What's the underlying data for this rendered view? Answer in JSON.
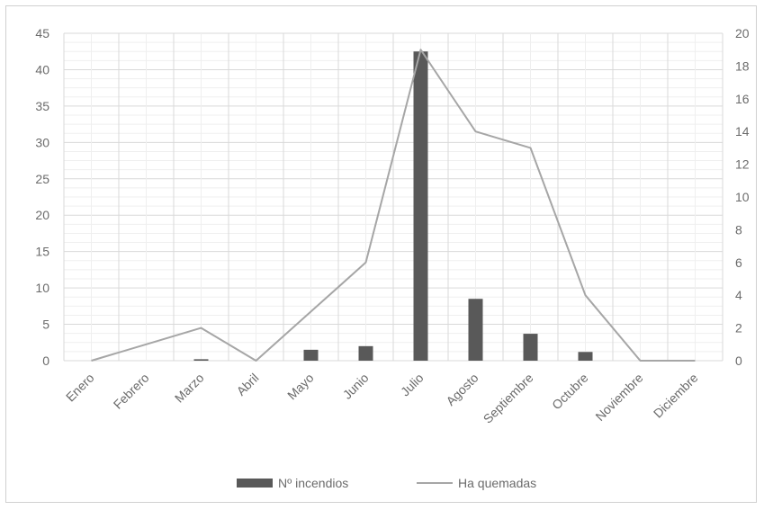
{
  "chart_data": {
    "type": "bar",
    "title": "",
    "xlabel": "",
    "ylabel": "",
    "categories": [
      "Enero",
      "Febrero",
      "Marzo",
      "Abril",
      "Mayo",
      "Junio",
      "Julio",
      "Agosto",
      "Septiembre",
      "Octubre",
      "Noviembre",
      "Diciembre"
    ],
    "ylim": [
      0,
      45
    ],
    "yticks": [
      "0",
      "5",
      "10",
      "15",
      "20",
      "25",
      "30",
      "35",
      "40",
      "45"
    ],
    "y2lim": [
      0,
      20
    ],
    "y2ticks": [
      "0",
      "2",
      "4",
      "6",
      "8",
      "10",
      "12",
      "14",
      "16",
      "18",
      "20"
    ],
    "grid": true,
    "legend_position": "bottom",
    "series": [
      {
        "name": "Nº incendios",
        "type": "bar",
        "axis": "left",
        "color": "#595959",
        "values": [
          0,
          0,
          0.2,
          0,
          1.5,
          2,
          42.5,
          8.5,
          3.7,
          1.2,
          0,
          0
        ]
      },
      {
        "name": "Ha quemadas",
        "type": "line",
        "axis": "right",
        "color": "#a6a6a6",
        "values": [
          0,
          1,
          2,
          0,
          3,
          6,
          19,
          14,
          13,
          4,
          0,
          0
        ]
      }
    ]
  }
}
